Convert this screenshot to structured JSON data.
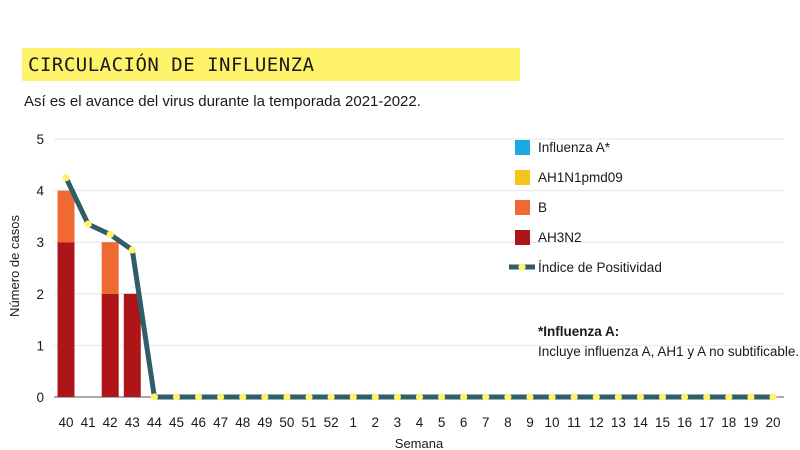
{
  "title": "CIRCULACIÓN DE INFLUENZA",
  "subtitle": "Así es el avance del virus durante la temporada 2021-2022.",
  "note": {
    "title": "*Influenza A:",
    "text": "Incluye influenza A, AH1 y A no subtificable."
  },
  "chart_data": {
    "type": "bar",
    "xlabel": "Semana",
    "ylabel": "Número de casos",
    "ylim": [
      0,
      5
    ],
    "yticks": [
      0,
      1,
      2,
      3,
      4,
      5
    ],
    "grid": true,
    "legend_position": "right",
    "categories": [
      "40",
      "41",
      "42",
      "43",
      "44",
      "45",
      "46",
      "47",
      "48",
      "49",
      "50",
      "51",
      "52",
      "1",
      "2",
      "3",
      "4",
      "5",
      "6",
      "7",
      "8",
      "9",
      "10",
      "11",
      "12",
      "13",
      "14",
      "15",
      "16",
      "17",
      "18",
      "19",
      "20"
    ],
    "series": [
      {
        "name": "Influenza A*",
        "color": "#1ba9e1",
        "values": [
          0,
          0,
          0,
          0,
          0,
          0,
          0,
          0,
          0,
          0,
          0,
          0,
          0,
          0,
          0,
          0,
          0,
          0,
          0,
          0,
          0,
          0,
          0,
          0,
          0,
          0,
          0,
          0,
          0,
          0,
          0,
          0,
          0
        ]
      },
      {
        "name": "AH1N1pmd09",
        "color": "#f5c319",
        "values": [
          0,
          0,
          0,
          0,
          0,
          0,
          0,
          0,
          0,
          0,
          0,
          0,
          0,
          0,
          0,
          0,
          0,
          0,
          0,
          0,
          0,
          0,
          0,
          0,
          0,
          0,
          0,
          0,
          0,
          0,
          0,
          0,
          0
        ]
      },
      {
        "name": "B",
        "color": "#ee6a32",
        "values": [
          1,
          0,
          1,
          0,
          0,
          0,
          0,
          0,
          0,
          0,
          0,
          0,
          0,
          0,
          0,
          0,
          0,
          0,
          0,
          0,
          0,
          0,
          0,
          0,
          0,
          0,
          0,
          0,
          0,
          0,
          0,
          0,
          0
        ]
      },
      {
        "name": "AH3N2",
        "color": "#ad1519",
        "values": [
          3,
          0,
          2,
          2,
          0,
          0,
          0,
          0,
          0,
          0,
          0,
          0,
          0,
          0,
          0,
          0,
          0,
          0,
          0,
          0,
          0,
          0,
          0,
          0,
          0,
          0,
          0,
          0,
          0,
          0,
          0,
          0,
          0
        ]
      }
    ],
    "stack_order": [
      "AH3N2",
      "B",
      "AH1N1pmd09",
      "Influenza A*"
    ],
    "line_series": {
      "name": "Índice de Positividad",
      "line_color": "#2f5d68",
      "marker_color": "#fff36b",
      "values": [
        4.25,
        3.35,
        3.15,
        2.85,
        0,
        0,
        0,
        0,
        0,
        0,
        0,
        0,
        0,
        0,
        0,
        0,
        0,
        0,
        0,
        0,
        0,
        0,
        0,
        0,
        0,
        0,
        0,
        0,
        0,
        0,
        0,
        0,
        0
      ]
    }
  }
}
